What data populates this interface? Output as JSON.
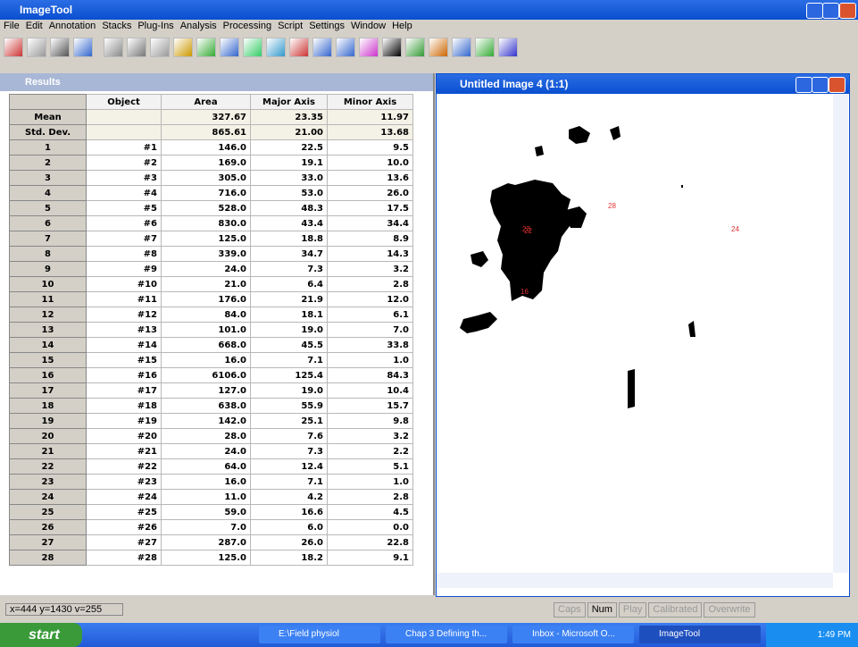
{
  "app": {
    "title": "ImageTool",
    "menu": [
      "File",
      "Edit",
      "Annotation",
      "Stacks",
      "Plug-Ins",
      "Analysis",
      "Processing",
      "Script",
      "Settings",
      "Window",
      "Help"
    ]
  },
  "results": {
    "title": "Results",
    "headers": [
      "Object",
      "Area",
      "Major Axis",
      "Minor Axis"
    ],
    "summary": [
      {
        "label": "Mean",
        "values": [
          "327.67",
          "23.35",
          "11.97"
        ]
      },
      {
        "label": "Std. Dev.",
        "values": [
          "865.61",
          "21.00",
          "13.68"
        ]
      }
    ],
    "rows": [
      [
        "1",
        "#1",
        "146.0",
        "22.5",
        "9.5"
      ],
      [
        "2",
        "#2",
        "169.0",
        "19.1",
        "10.0"
      ],
      [
        "3",
        "#3",
        "305.0",
        "33.0",
        "13.6"
      ],
      [
        "4",
        "#4",
        "716.0",
        "53.0",
        "26.0"
      ],
      [
        "5",
        "#5",
        "528.0",
        "48.3",
        "17.5"
      ],
      [
        "6",
        "#6",
        "830.0",
        "43.4",
        "34.4"
      ],
      [
        "7",
        "#7",
        "125.0",
        "18.8",
        "8.9"
      ],
      [
        "8",
        "#8",
        "339.0",
        "34.7",
        "14.3"
      ],
      [
        "9",
        "#9",
        "24.0",
        "7.3",
        "3.2"
      ],
      [
        "10",
        "#10",
        "21.0",
        "6.4",
        "2.8"
      ],
      [
        "11",
        "#11",
        "176.0",
        "21.9",
        "12.0"
      ],
      [
        "12",
        "#12",
        "84.0",
        "18.1",
        "6.1"
      ],
      [
        "13",
        "#13",
        "101.0",
        "19.0",
        "7.0"
      ],
      [
        "14",
        "#14",
        "668.0",
        "45.5",
        "33.8"
      ],
      [
        "15",
        "#15",
        "16.0",
        "7.1",
        "1.0"
      ],
      [
        "16",
        "#16",
        "6106.0",
        "125.4",
        "84.3"
      ],
      [
        "17",
        "#17",
        "127.0",
        "19.0",
        "10.4"
      ],
      [
        "18",
        "#18",
        "638.0",
        "55.9",
        "15.7"
      ],
      [
        "19",
        "#19",
        "142.0",
        "25.1",
        "9.8"
      ],
      [
        "20",
        "#20",
        "28.0",
        "7.6",
        "3.2"
      ],
      [
        "21",
        "#21",
        "24.0",
        "7.3",
        "2.2"
      ],
      [
        "22",
        "#22",
        "64.0",
        "12.4",
        "5.1"
      ],
      [
        "23",
        "#23",
        "16.0",
        "7.1",
        "1.0"
      ],
      [
        "24",
        "#24",
        "11.0",
        "4.2",
        "2.8"
      ],
      [
        "25",
        "#25",
        "59.0",
        "16.6",
        "4.5"
      ],
      [
        "26",
        "#26",
        "7.0",
        "6.0",
        "0.0"
      ],
      [
        "27",
        "#27",
        "287.0",
        "26.0",
        "22.8"
      ],
      [
        "28",
        "#28",
        "125.0",
        "18.2",
        "9.1"
      ]
    ]
  },
  "image": {
    "title": "Untitled Image 4 (1:1)",
    "labels": [
      "22",
      "23",
      "28",
      "24",
      "16"
    ]
  },
  "status": {
    "coords": "x=444 y=1430 v=255",
    "indicators": [
      "Caps",
      "Num",
      "Play",
      "Calibrated",
      "Overwrite"
    ]
  },
  "taskbar": {
    "start": "start",
    "tasks": [
      "E:\\Field physiol",
      "Chap 3 Defining th...",
      "Inbox - Microsoft O...",
      "ImageTool"
    ],
    "clock": "1:49 PM"
  }
}
